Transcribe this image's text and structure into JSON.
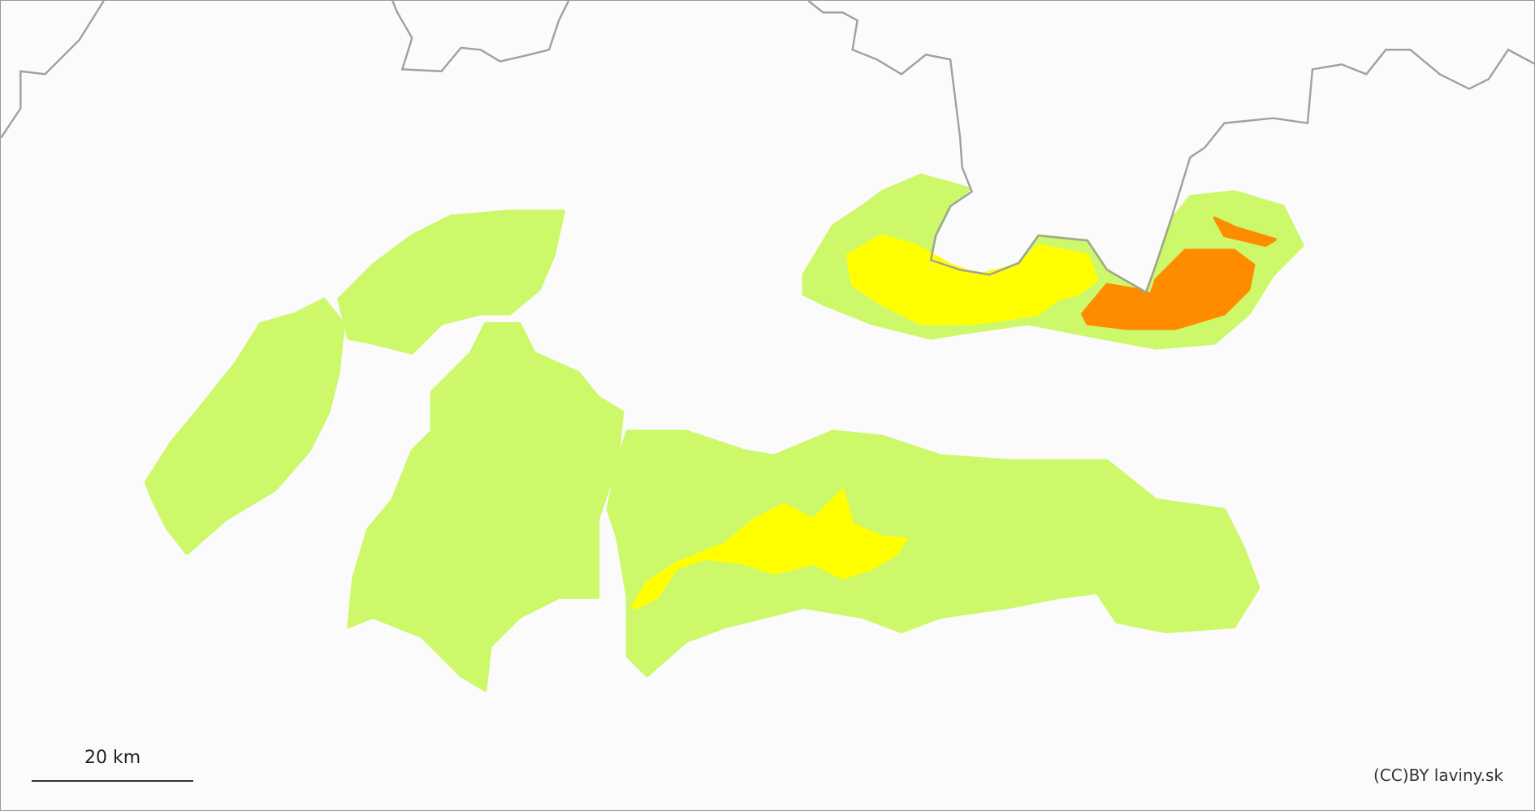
{
  "map": {
    "scale": {
      "label": "20 km"
    },
    "attribution": "(CC)BY laviny.sk",
    "colors": {
      "background": "#fbfbfb",
      "border": "#a0a0a0",
      "level_1_low": "#ccf86a",
      "level_2_moderate": "#ffff00",
      "level_3_considerable": "#ff8c00"
    }
  }
}
